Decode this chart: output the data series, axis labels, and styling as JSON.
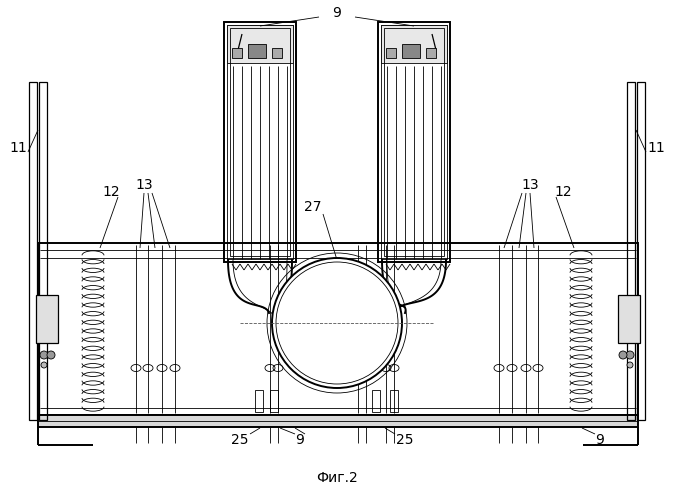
{
  "bg_color": "#ffffff",
  "line_color": "#000000",
  "figure_caption": "Фиг.2",
  "lw_thin": 0.6,
  "lw_med": 0.9,
  "lw_thick": 1.4
}
